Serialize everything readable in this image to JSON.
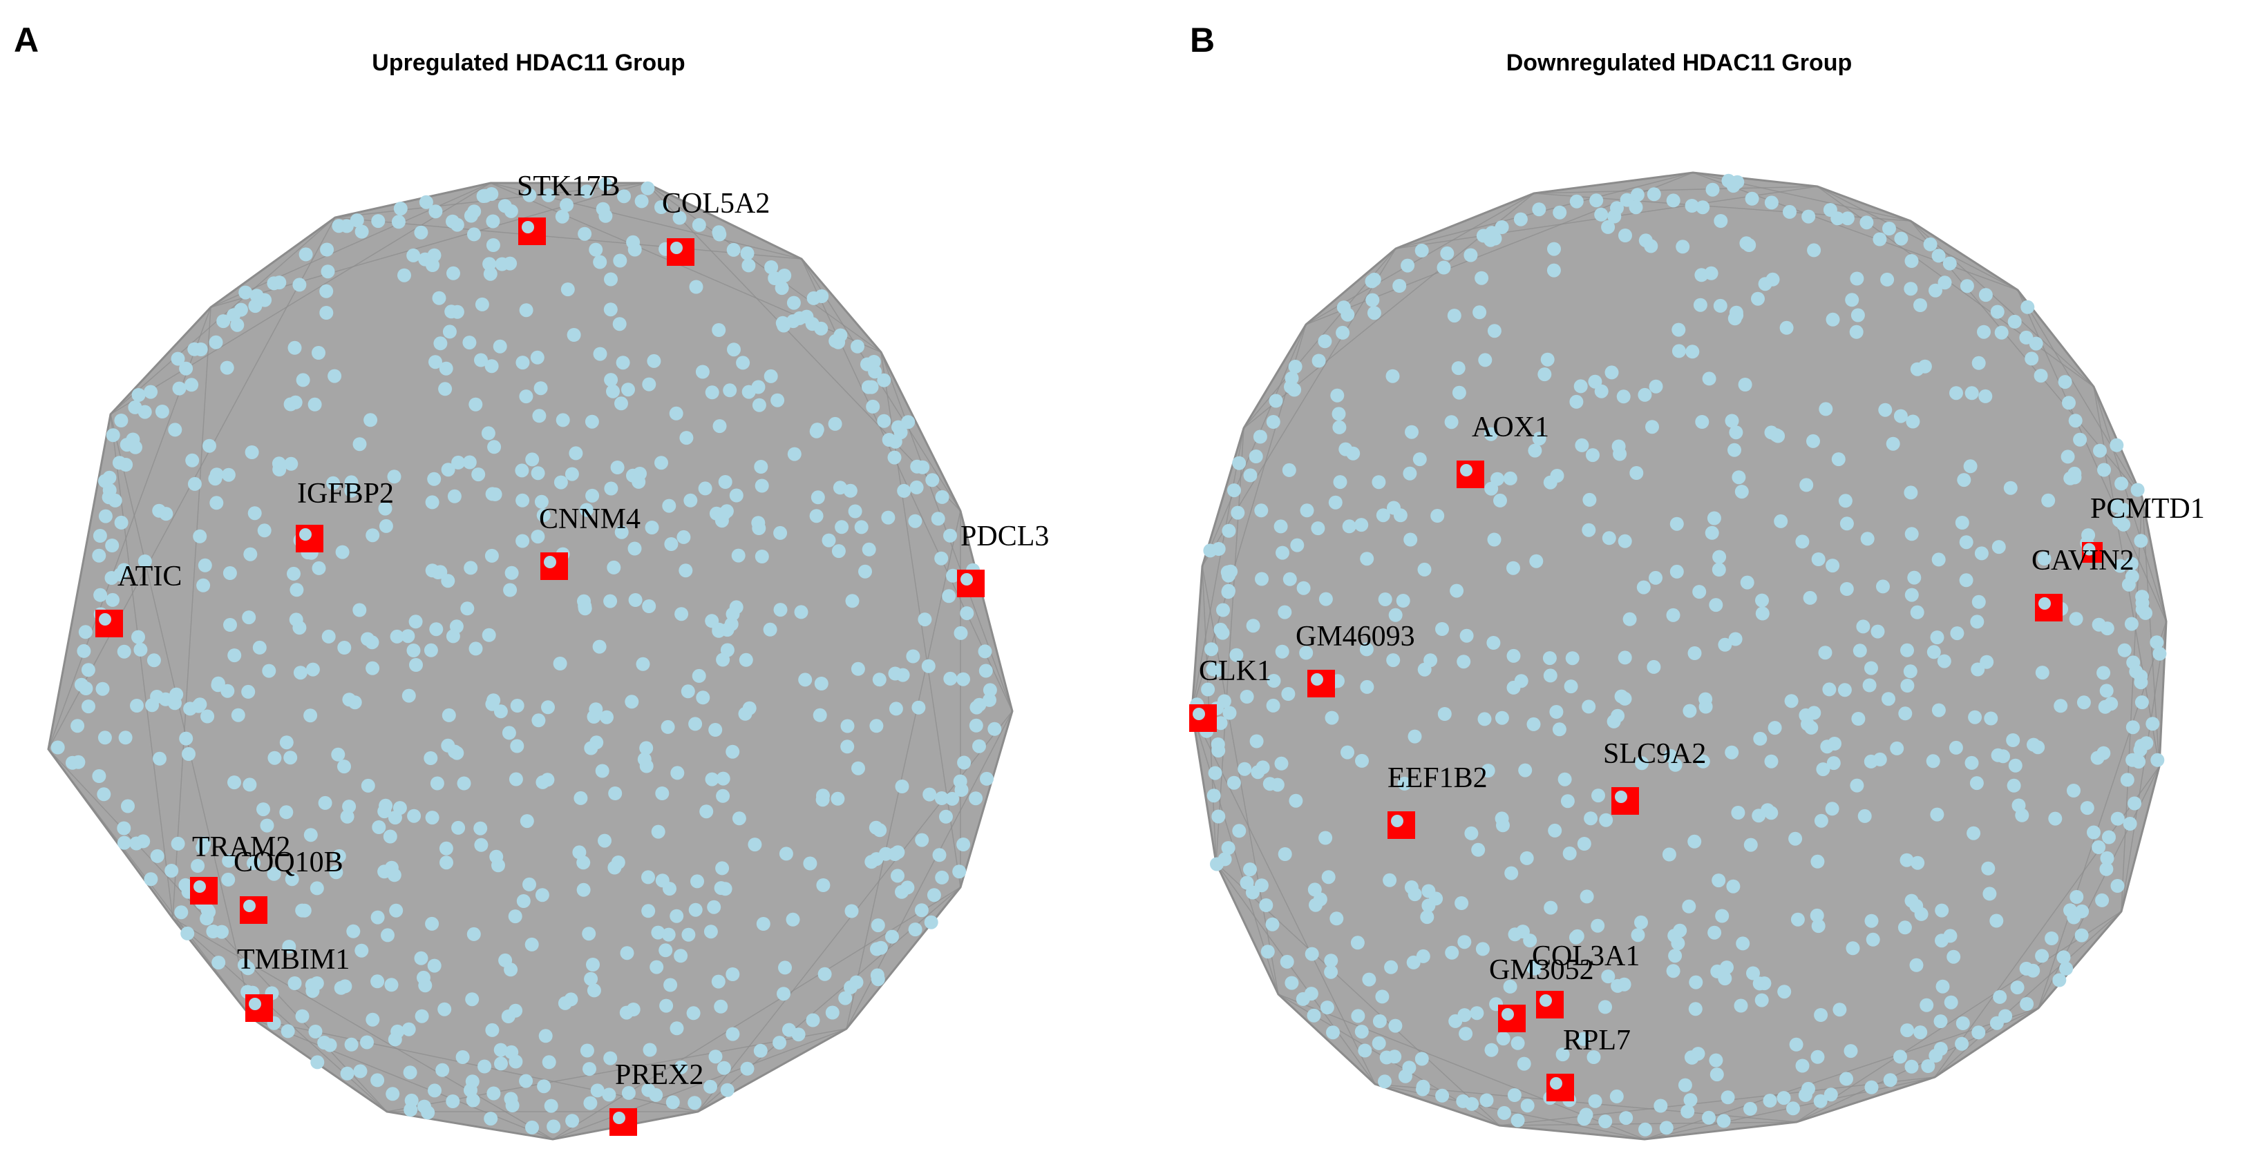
{
  "colors": {
    "background": "#ffffff",
    "network_fill": "#a6a6a6",
    "edge_line": "#8c8c8c",
    "node": "#add8e6",
    "highlight": "#ff0000",
    "text": "#000000"
  },
  "panels": [
    {
      "letter": "A",
      "title": "Upregulated HDAC11 Group",
      "genes": [
        "STK17B",
        "COL5A2",
        "IGFBP2",
        "CNNM4",
        "PDCL3",
        "ATIC",
        "TRAM2",
        "COQ10B",
        "TMBIM1",
        "PREX2"
      ]
    },
    {
      "letter": "B",
      "title": "Downregulated HDAC11 Group",
      "genes": [
        "AOX1",
        "PCMTD1",
        "CAVIN2",
        "GM46093",
        "CLK1",
        "SLC9A2",
        "EEF1B2",
        "COL3A1",
        "GM3052",
        "RPL7"
      ]
    }
  ]
}
